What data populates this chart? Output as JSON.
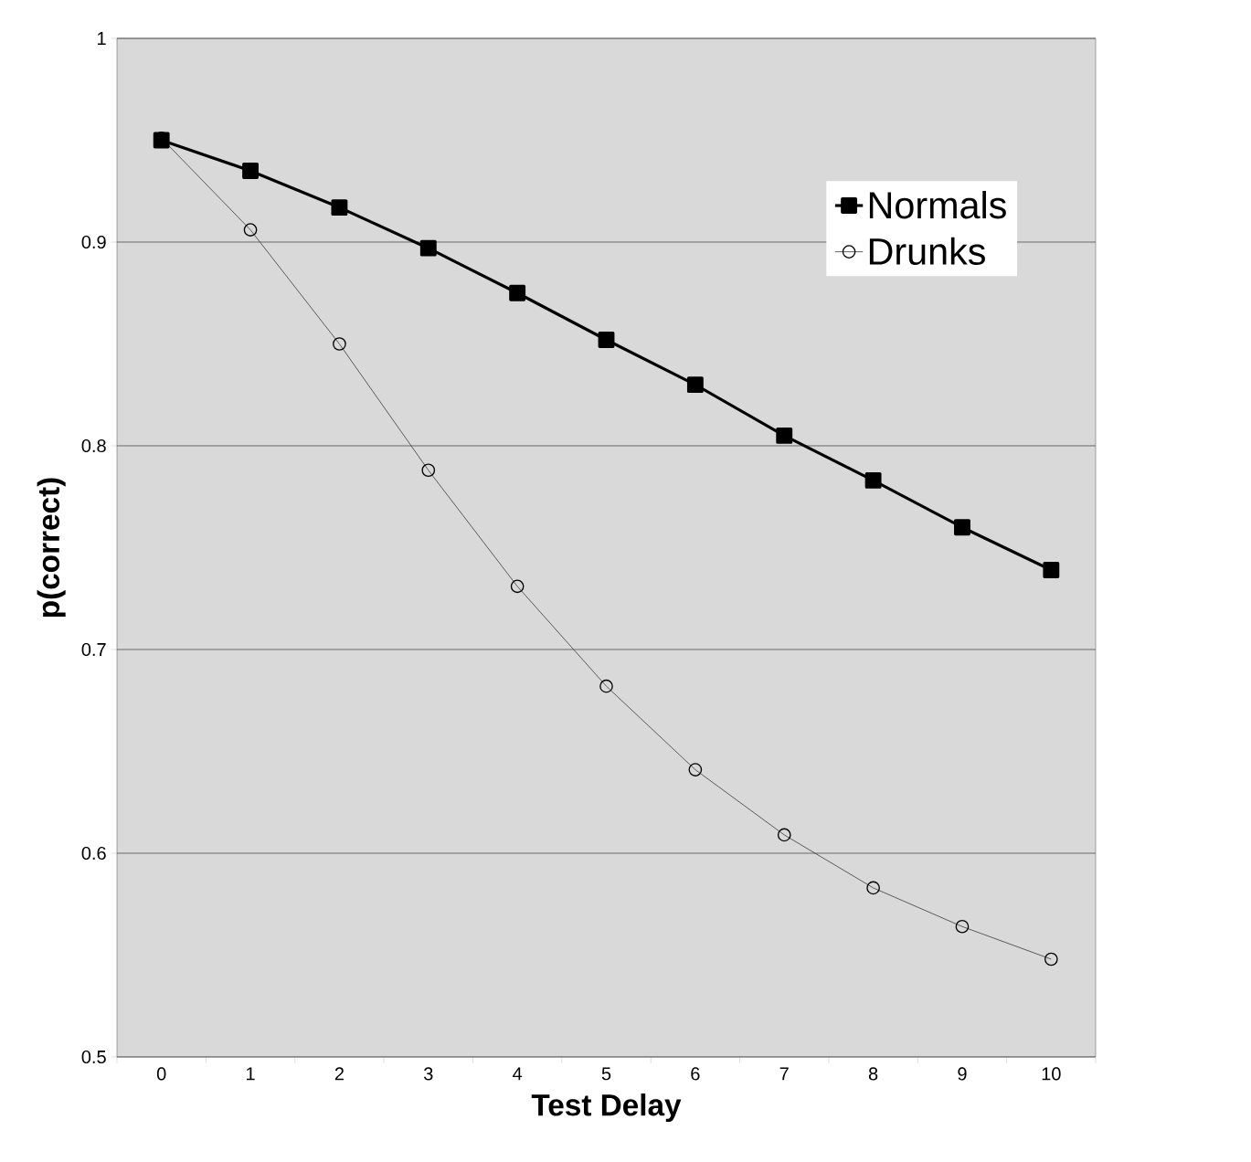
{
  "chart_data": {
    "type": "line",
    "xlabel": "Test Delay",
    "ylabel": "p(correct)",
    "categories": [
      "0",
      "1",
      "2",
      "3",
      "4",
      "5",
      "6",
      "7",
      "8",
      "9",
      "10"
    ],
    "series": [
      {
        "name": "Normals",
        "color": "#000000",
        "marker": "square",
        "values": [
          0.95,
          0.935,
          0.917,
          0.897,
          0.875,
          0.852,
          0.83,
          0.805,
          0.783,
          0.76,
          0.739
        ]
      },
      {
        "name": "Drunks",
        "color": "#3a3a3a",
        "marker": "circle",
        "values": [
          0.951,
          0.906,
          0.85,
          0.788,
          0.731,
          0.682,
          0.641,
          0.609,
          0.583,
          0.564,
          0.548
        ]
      }
    ],
    "ylim": [
      0.5,
      1
    ],
    "yticks": [
      0.5,
      0.6,
      0.7,
      0.8,
      0.9,
      1
    ],
    "grid": "y",
    "legend": "top right"
  }
}
